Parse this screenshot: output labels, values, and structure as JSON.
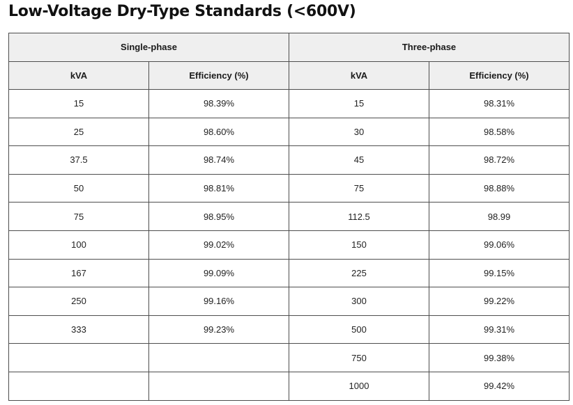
{
  "title": "Low-Voltage Dry-Type Standards (<600V)",
  "groups": {
    "single": "Single-phase",
    "three": "Three-phase"
  },
  "columns": {
    "kva": "kVA",
    "efficiency": "Efficiency (%)"
  },
  "rows": [
    {
      "s_kva": "15",
      "s_eff": "98.39%",
      "t_kva": "15",
      "t_eff": "98.31%"
    },
    {
      "s_kva": "25",
      "s_eff": "98.60%",
      "t_kva": "30",
      "t_eff": "98.58%"
    },
    {
      "s_kva": "37.5",
      "s_eff": "98.74%",
      "t_kva": "45",
      "t_eff": "98.72%"
    },
    {
      "s_kva": "50",
      "s_eff": "98.81%",
      "t_kva": "75",
      "t_eff": "98.88%"
    },
    {
      "s_kva": "75",
      "s_eff": "98.95%",
      "t_kva": "112.5",
      "t_eff": "98.99"
    },
    {
      "s_kva": "100",
      "s_eff": "99.02%",
      "t_kva": "150",
      "t_eff": "99.06%"
    },
    {
      "s_kva": "167",
      "s_eff": "99.09%",
      "t_kva": "225",
      "t_eff": "99.15%"
    },
    {
      "s_kva": "250",
      "s_eff": "99.16%",
      "t_kva": "300",
      "t_eff": "99.22%"
    },
    {
      "s_kva": "333",
      "s_eff": "99.23%",
      "t_kva": "500",
      "t_eff": "99.31%"
    },
    {
      "s_kva": "",
      "s_eff": "",
      "t_kva": "750",
      "t_eff": "99.38%"
    },
    {
      "s_kva": "",
      "s_eff": "",
      "t_kva": "1000",
      "t_eff": "99.42%"
    }
  ]
}
